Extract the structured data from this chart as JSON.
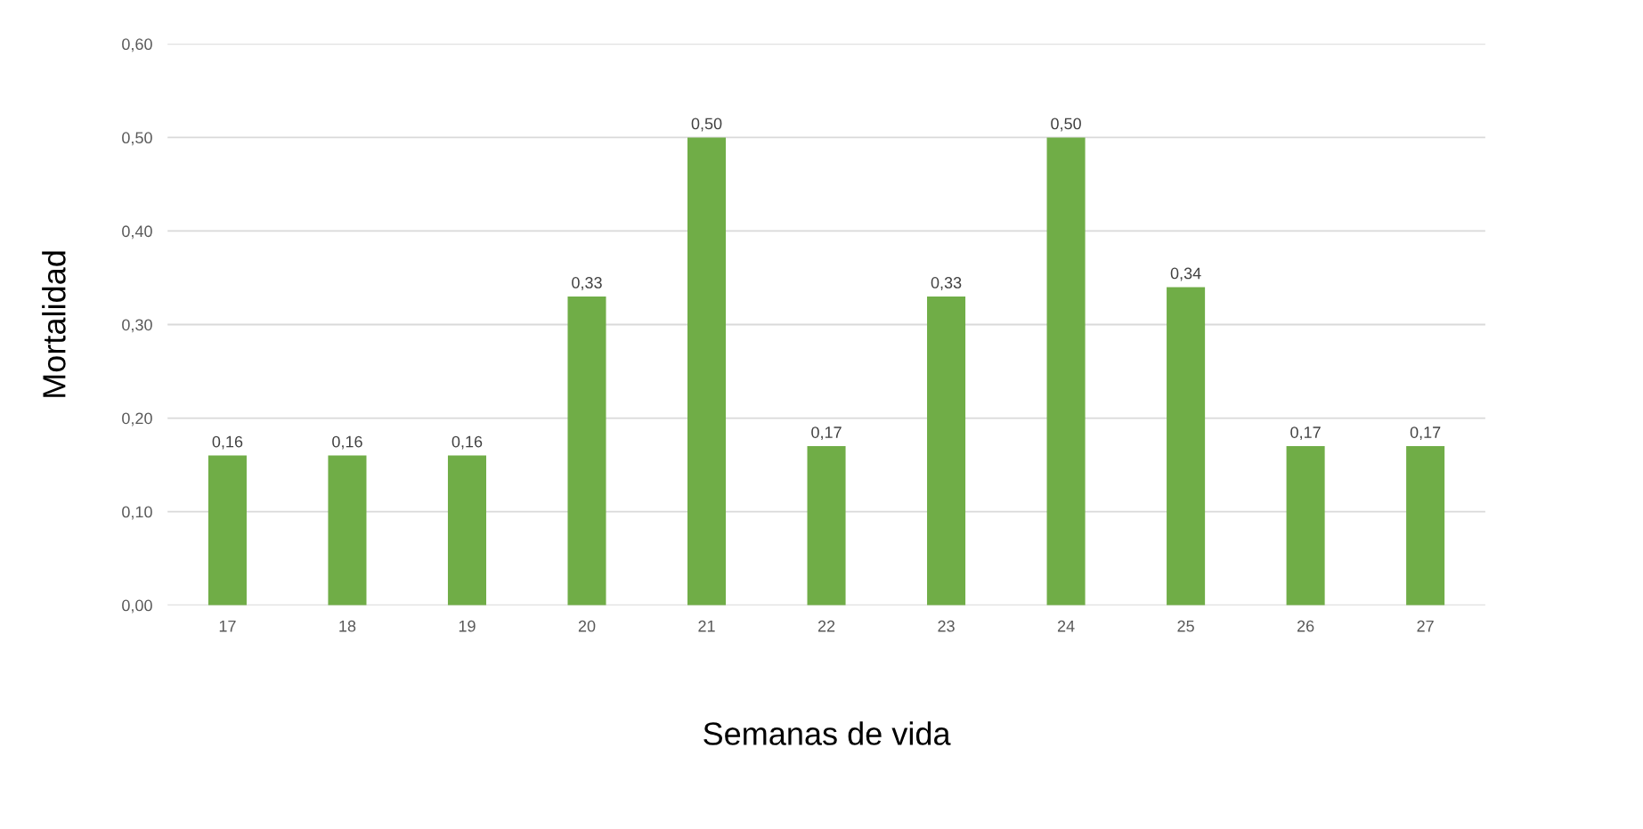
{
  "chart_data": {
    "type": "bar",
    "xlabel": "Semanas de vida",
    "ylabel": "Mortalidad",
    "categories": [
      "17",
      "18",
      "19",
      "20",
      "21",
      "22",
      "23",
      "24",
      "25",
      "26",
      "27"
    ],
    "values": [
      0.16,
      0.16,
      0.16,
      0.33,
      0.5,
      0.17,
      0.33,
      0.5,
      0.34,
      0.17,
      0.17
    ],
    "value_labels": [
      "0,16",
      "0,16",
      "0,16",
      "0,33",
      "0,50",
      "0,17",
      "0,33",
      "0,50",
      "0,34",
      "0,17",
      "0,17"
    ],
    "color": "#70ad47",
    "ylim": [
      0,
      0.6
    ],
    "yticks": [
      {
        "value": 0,
        "label": "0,00"
      },
      {
        "value": 0.1,
        "label": "0,10"
      },
      {
        "value": 0.2,
        "label": "0,20"
      },
      {
        "value": 0.3,
        "label": "0,30"
      },
      {
        "value": 0.4,
        "label": "0,40"
      },
      {
        "value": 0.5,
        "label": "0,50"
      },
      {
        "value": 0.6,
        "label": "0,60"
      }
    ],
    "grid": "y",
    "legend": false
  }
}
